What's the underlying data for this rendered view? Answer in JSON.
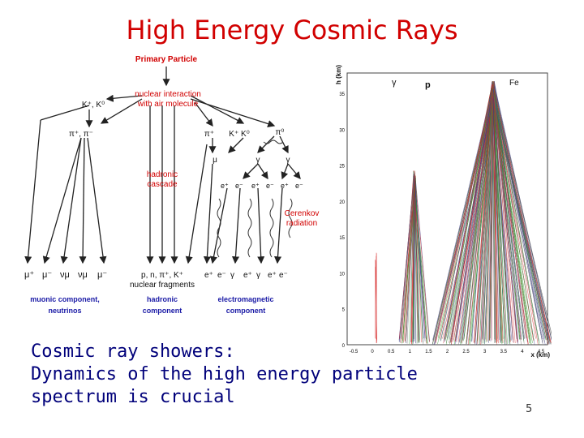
{
  "slide": {
    "title": "High Energy Cosmic Rays",
    "caption_lines": [
      "Cosmic ray showers:",
      "Dynamics of the high energy particle",
      "spectrum is crucial"
    ],
    "page_number": "5"
  },
  "diagram": {
    "primary": "Primary Particle",
    "interaction": [
      "nuclear interaction",
      "with air molecule"
    ],
    "kaons": "K⁺, K⁰",
    "pions": "π⁺, π⁻",
    "hadronic_cascade": [
      "hadronic",
      "cascade"
    ],
    "cerenkov": [
      "Cerenkov",
      "radiation"
    ],
    "right_pion": "π⁺",
    "right_kaons": "K⁺ K⁰",
    "right_pi0": "π⁰",
    "mid_gamma": "γ",
    "mid_mu": "μ",
    "right_gamma": "γ",
    "muonic_particles": [
      "μ⁺",
      "μ⁻",
      "νμ",
      "νμ",
      "μ⁻"
    ],
    "nuclear_particles": "p, n, π⁺, K⁺",
    "nuclear_fragments": "nuclear fragments",
    "em_particles": [
      "e⁺",
      "e⁻",
      "γ",
      "e⁺",
      "γ",
      "e⁺",
      "e⁻"
    ],
    "cascade_row": [
      "e⁺",
      "e⁻",
      "e⁺",
      "e⁻",
      "e⁺",
      "e⁻"
    ],
    "labels": {
      "muonic": [
        "muonic component,",
        "neutrinos"
      ],
      "hadronic": [
        "hadronic",
        "component"
      ],
      "electromagnetic": [
        "electromagnetic",
        "component"
      ]
    },
    "colors": {
      "red": "#d10000",
      "blue": "#1a1aa6"
    }
  },
  "plot": {
    "ylabel": "h (km)",
    "xlabel": "x (km)",
    "particles": [
      "γ",
      "p",
      "Fe"
    ],
    "y_ticks": [
      "35",
      "30",
      "25",
      "20",
      "15",
      "10",
      "5",
      "0"
    ],
    "x_ticks": [
      "-0.5",
      "0",
      "0.5",
      "1",
      "1.5",
      "2",
      "2.5",
      "3",
      "3.5",
      "4",
      "4.5"
    ]
  }
}
